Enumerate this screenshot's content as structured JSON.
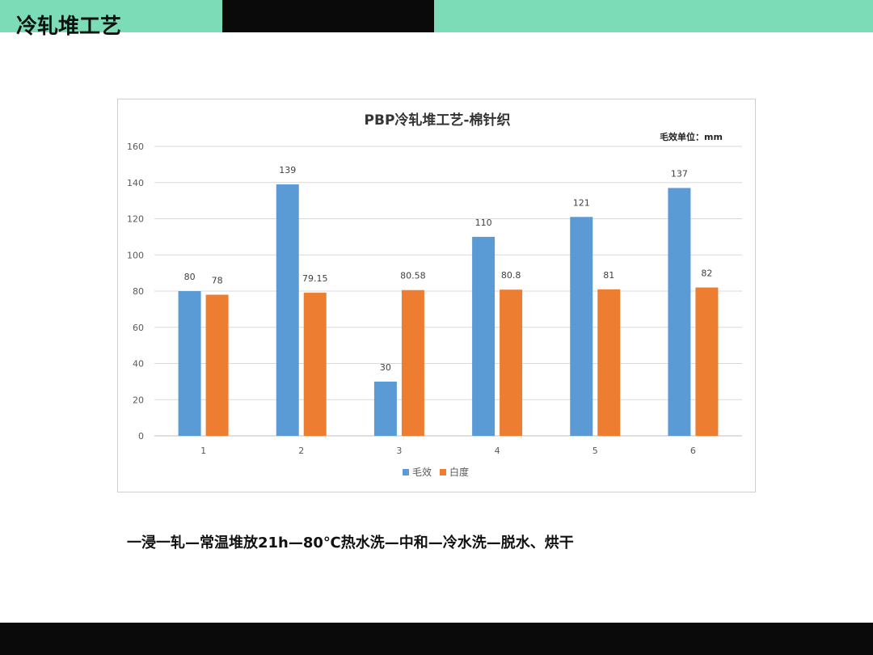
{
  "slide": {
    "title": "冷轧堆工艺",
    "process": "一浸一轧—常温堆放21h—80℃热水洗—中和—冷水洗—脱水、烘干"
  },
  "chart_data": {
    "type": "bar",
    "title": "PBP冷轧堆工艺-棉针织",
    "unit_note": "毛效单位：mm",
    "categories": [
      "1",
      "2",
      "3",
      "4",
      "5",
      "6"
    ],
    "series": [
      {
        "name": "毛效",
        "color": "#5b9bd5",
        "values": [
          80,
          139,
          30,
          110,
          121,
          137
        ],
        "labels": [
          "80",
          "139",
          "30",
          "110",
          "121",
          "137"
        ]
      },
      {
        "name": "白度",
        "color": "#ed7d31",
        "values": [
          78,
          79.15,
          80.58,
          80.8,
          81,
          82
        ],
        "labels": [
          "78",
          "79.15",
          "80.58",
          "80.8",
          "81",
          "82"
        ]
      }
    ],
    "ylim": [
      0,
      160
    ],
    "yticks": [
      0,
      20,
      40,
      60,
      80,
      100,
      120,
      140,
      160
    ],
    "grid": true,
    "legend": "bottom"
  }
}
